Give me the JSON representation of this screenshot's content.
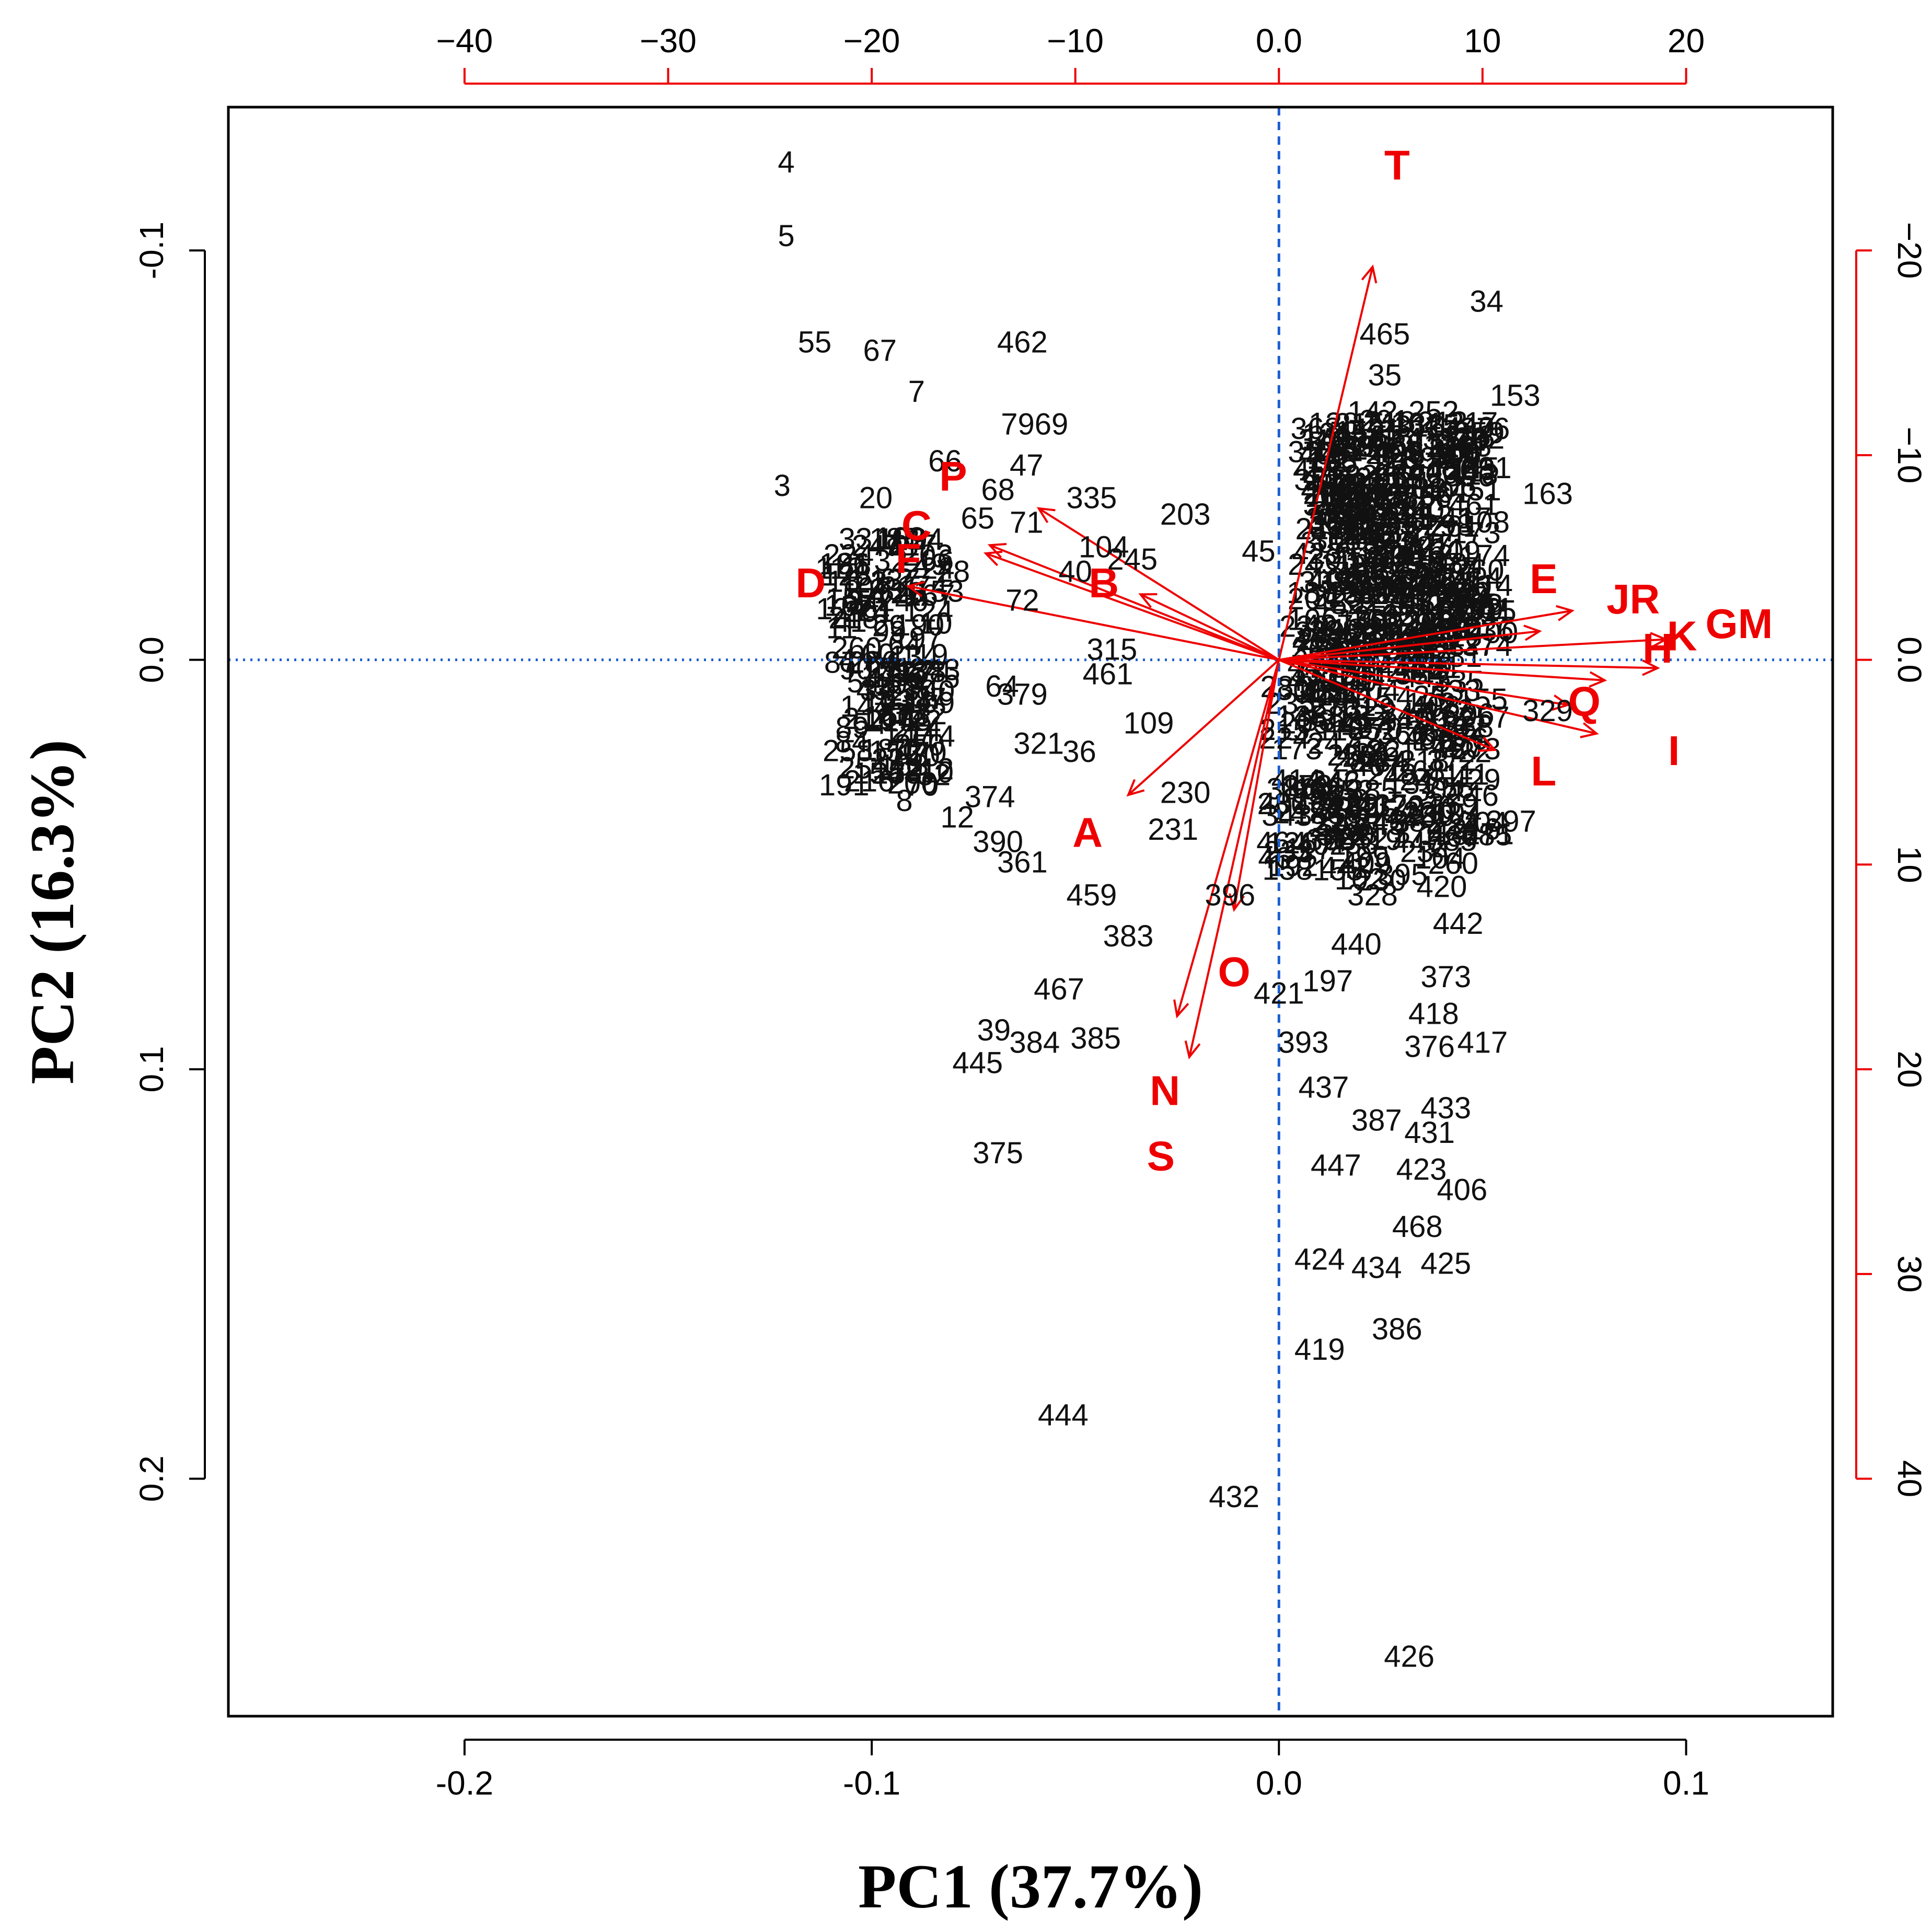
{
  "chart_data": {
    "type": "scatter",
    "subtype": "pca-biplot",
    "xlabel": "PC1 (37.7%)",
    "ylabel": "PC2 (16.3%)",
    "xlim": [
      -0.258,
      0.136
    ],
    "ylim": [
      -0.135,
      0.258
    ],
    "y_inverted": true,
    "x_ticks": [
      "-0.2",
      "-0.1",
      "0.0",
      "0.1"
    ],
    "x_tick_values": [
      -0.2,
      -0.1,
      0.0,
      0.1
    ],
    "y_ticks": [
      "-0.1",
      "0.0",
      "0.1",
      "0.2"
    ],
    "y_tick_values": [
      -0.1,
      0.0,
      0.1,
      0.2
    ],
    "top_ticks": [
      "−40",
      "−30",
      "−20",
      "−10",
      "0.0",
      "10",
      "20"
    ],
    "top_tick_values": [
      -40,
      -30,
      -20,
      -10,
      0,
      10,
      20
    ],
    "right_ticks": [
      "−20",
      "−10",
      "0.0",
      "10",
      "20",
      "30",
      "40"
    ],
    "right_tick_values": [
      -20,
      -10,
      0,
      10,
      20,
      30,
      40
    ],
    "loading_scale": 200,
    "reference_lines": {
      "x": 0.0,
      "y": 0.0,
      "color": "#1a5fd0",
      "style": "dashed"
    },
    "colors": {
      "points": "#111111",
      "loadings": "#ee0000",
      "secondary_axes": "#ee0000"
    },
    "points": [
      {
        "label": "4",
        "x": -0.121,
        "y": -0.121
      },
      {
        "label": "5",
        "x": -0.121,
        "y": -0.103
      },
      {
        "label": "55",
        "x": -0.114,
        "y": -0.077
      },
      {
        "label": "67",
        "x": -0.098,
        "y": -0.075
      },
      {
        "label": "7",
        "x": -0.089,
        "y": -0.065
      },
      {
        "label": "462",
        "x": -0.063,
        "y": -0.077
      },
      {
        "label": "7969",
        "x": -0.06,
        "y": -0.057
      },
      {
        "label": "3",
        "x": -0.122,
        "y": -0.042
      },
      {
        "label": "20",
        "x": -0.099,
        "y": -0.039
      },
      {
        "label": "66",
        "x": -0.082,
        "y": -0.048
      },
      {
        "label": "68",
        "x": -0.069,
        "y": -0.041
      },
      {
        "label": "47",
        "x": -0.062,
        "y": -0.047
      },
      {
        "label": "335",
        "x": -0.046,
        "y": -0.039
      },
      {
        "label": "203",
        "x": -0.023,
        "y": -0.035
      },
      {
        "label": "65",
        "x": -0.074,
        "y": -0.034
      },
      {
        "label": "71",
        "x": -0.062,
        "y": -0.033
      },
      {
        "label": "104",
        "x": -0.043,
        "y": -0.027
      },
      {
        "label": "245",
        "x": -0.036,
        "y": -0.024
      },
      {
        "label": "28",
        "x": -0.08,
        "y": -0.021
      },
      {
        "label": "72",
        "x": -0.063,
        "y": -0.014
      },
      {
        "label": "40",
        "x": -0.05,
        "y": -0.021
      },
      {
        "label": "64",
        "x": -0.068,
        "y": 0.007
      },
      {
        "label": "315",
        "x": -0.041,
        "y": -0.002
      },
      {
        "label": "461",
        "x": -0.042,
        "y": 0.004
      },
      {
        "label": "379",
        "x": -0.063,
        "y": 0.009
      },
      {
        "label": "109",
        "x": -0.032,
        "y": 0.016
      },
      {
        "label": "321",
        "x": -0.059,
        "y": 0.021
      },
      {
        "label": "36",
        "x": -0.049,
        "y": 0.023
      },
      {
        "label": "230",
        "x": -0.023,
        "y": 0.033
      },
      {
        "label": "231",
        "x": -0.026,
        "y": 0.042
      },
      {
        "label": "374",
        "x": -0.071,
        "y": 0.034
      },
      {
        "label": "12",
        "x": -0.079,
        "y": 0.039
      },
      {
        "label": "390",
        "x": -0.069,
        "y": 0.045
      },
      {
        "label": "361",
        "x": -0.063,
        "y": 0.05
      },
      {
        "label": "459",
        "x": -0.046,
        "y": 0.058
      },
      {
        "label": "383",
        "x": -0.037,
        "y": 0.068
      },
      {
        "label": "467",
        "x": -0.054,
        "y": 0.081
      },
      {
        "label": "39",
        "x": -0.07,
        "y": 0.091
      },
      {
        "label": "384",
        "x": -0.06,
        "y": 0.094
      },
      {
        "label": "385",
        "x": -0.045,
        "y": 0.093
      },
      {
        "label": "445",
        "x": -0.074,
        "y": 0.099
      },
      {
        "label": "375",
        "x": -0.069,
        "y": 0.121
      },
      {
        "label": "444",
        "x": -0.053,
        "y": 0.185
      },
      {
        "label": "432",
        "x": -0.011,
        "y": 0.205
      },
      {
        "label": "8",
        "x": -0.092,
        "y": 0.035
      },
      {
        "label": "10",
        "x": -0.084,
        "y": 0.028
      },
      {
        "label": "251",
        "x": -0.102,
        "y": 0.027
      },
      {
        "label": "54",
        "x": -0.102,
        "y": 0.006
      },
      {
        "label": "33",
        "x": -0.104,
        "y": -0.029
      },
      {
        "label": "396",
        "x": -0.012,
        "y": 0.058
      },
      {
        "label": "421",
        "x": 0.0,
        "y": 0.082
      },
      {
        "label": "393",
        "x": 0.006,
        "y": 0.094
      },
      {
        "label": "437",
        "x": 0.011,
        "y": 0.105
      },
      {
        "label": "387",
        "x": 0.024,
        "y": 0.113
      },
      {
        "label": "447",
        "x": 0.014,
        "y": 0.124
      },
      {
        "label": "424",
        "x": 0.01,
        "y": 0.147
      },
      {
        "label": "434",
        "x": 0.024,
        "y": 0.149
      },
      {
        "label": "419",
        "x": 0.01,
        "y": 0.169
      },
      {
        "label": "386",
        "x": 0.029,
        "y": 0.164
      },
      {
        "label": "426",
        "x": 0.032,
        "y": 0.244
      },
      {
        "label": "468",
        "x": 0.034,
        "y": 0.139
      },
      {
        "label": "425",
        "x": 0.041,
        "y": 0.148
      },
      {
        "label": "406",
        "x": 0.045,
        "y": 0.13
      },
      {
        "label": "423",
        "x": 0.035,
        "y": 0.125
      },
      {
        "label": "431",
        "x": 0.037,
        "y": 0.116
      },
      {
        "label": "433",
        "x": 0.041,
        "y": 0.11
      },
      {
        "label": "376",
        "x": 0.037,
        "y": 0.095
      },
      {
        "label": "417",
        "x": 0.05,
        "y": 0.094
      },
      {
        "label": "373",
        "x": 0.041,
        "y": 0.078
      },
      {
        "label": "418",
        "x": 0.038,
        "y": 0.087
      },
      {
        "label": "442",
        "x": 0.044,
        "y": 0.065
      },
      {
        "label": "420",
        "x": 0.04,
        "y": 0.056
      },
      {
        "label": "328",
        "x": 0.023,
        "y": 0.058
      },
      {
        "label": "440",
        "x": 0.019,
        "y": 0.07
      },
      {
        "label": "197",
        "x": 0.012,
        "y": 0.079
      },
      {
        "label": "382",
        "x": 0.034,
        "y": 0.04
      },
      {
        "label": "397",
        "x": 0.057,
        "y": 0.04
      },
      {
        "label": "329",
        "x": 0.066,
        "y": 0.013
      },
      {
        "label": "34",
        "x": 0.051,
        "y": -0.087
      },
      {
        "label": "465",
        "x": 0.026,
        "y": -0.079
      },
      {
        "label": "35",
        "x": 0.026,
        "y": -0.069
      },
      {
        "label": "153",
        "x": 0.058,
        "y": -0.064
      },
      {
        "label": "163",
        "x": 0.066,
        "y": -0.04
      },
      {
        "label": "252",
        "x": 0.038,
        "y": -0.06
      },
      {
        "label": "142",
        "x": 0.023,
        "y": -0.06
      },
      {
        "label": "20",
        "x": 0.01,
        "y": -0.04
      },
      {
        "label": "45",
        "x": -0.005,
        "y": -0.026
      }
    ],
    "loadings": [
      {
        "name": "T",
        "x": 0.023,
        "y": -0.096
      },
      {
        "name": "JR",
        "x": 0.072,
        "y": -0.012
      },
      {
        "name": "GM",
        "x": 0.095,
        "y": -0.005
      },
      {
        "name": "E",
        "x": 0.064,
        "y": -0.007
      },
      {
        "name": "H",
        "x": 0.08,
        "y": 0.005
      },
      {
        "name": "K",
        "x": 0.093,
        "y": 0.002
      },
      {
        "name": "I",
        "x": 0.078,
        "y": 0.018
      },
      {
        "name": "Q",
        "x": 0.071,
        "y": 0.011
      },
      {
        "name": "L",
        "x": 0.053,
        "y": 0.022
      },
      {
        "name": "O",
        "x": -0.011,
        "y": 0.061
      },
      {
        "name": "N",
        "x": -0.022,
        "y": 0.097
      },
      {
        "name": "S",
        "x": -0.025,
        "y": 0.087
      },
      {
        "name": "A",
        "x": -0.037,
        "y": 0.033
      },
      {
        "name": "B",
        "x": -0.034,
        "y": -0.016
      },
      {
        "name": "D",
        "x": -0.091,
        "y": -0.018
      },
      {
        "name": "F",
        "x": -0.072,
        "y": -0.026
      },
      {
        "name": "C",
        "x": -0.059,
        "y": -0.037
      },
      {
        "name": "P",
        "x": -0.071,
        "y": -0.028
      }
    ],
    "loading_label_values": [
      {
        "name": "T",
        "x": 0.029,
        "y": -0.12
      },
      {
        "name": "JR",
        "x": 0.087,
        "y": -0.014
      },
      {
        "name": "GM",
        "x": 0.113,
        "y": -0.008
      },
      {
        "name": "E",
        "x": 0.065,
        "y": -0.019
      },
      {
        "name": "H",
        "x": 0.093,
        "y": -0.002
      },
      {
        "name": "K",
        "x": 0.099,
        "y": -0.005
      },
      {
        "name": "I",
        "x": 0.097,
        "y": 0.023
      },
      {
        "name": "Q",
        "x": 0.075,
        "y": 0.011
      },
      {
        "name": "L",
        "x": 0.065,
        "y": 0.028
      },
      {
        "name": "O",
        "x": -0.011,
        "y": 0.077
      },
      {
        "name": "N",
        "x": -0.028,
        "y": 0.106
      },
      {
        "name": "S",
        "x": -0.029,
        "y": 0.122
      },
      {
        "name": "A",
        "x": -0.047,
        "y": 0.043
      },
      {
        "name": "B",
        "x": -0.043,
        "y": -0.018
      },
      {
        "name": "D",
        "x": -0.115,
        "y": -0.018
      },
      {
        "name": "F",
        "x": -0.091,
        "y": -0.024
      },
      {
        "name": "C",
        "x": -0.089,
        "y": -0.032
      },
      {
        "name": "P",
        "x": -0.08,
        "y": -0.044
      }
    ]
  }
}
